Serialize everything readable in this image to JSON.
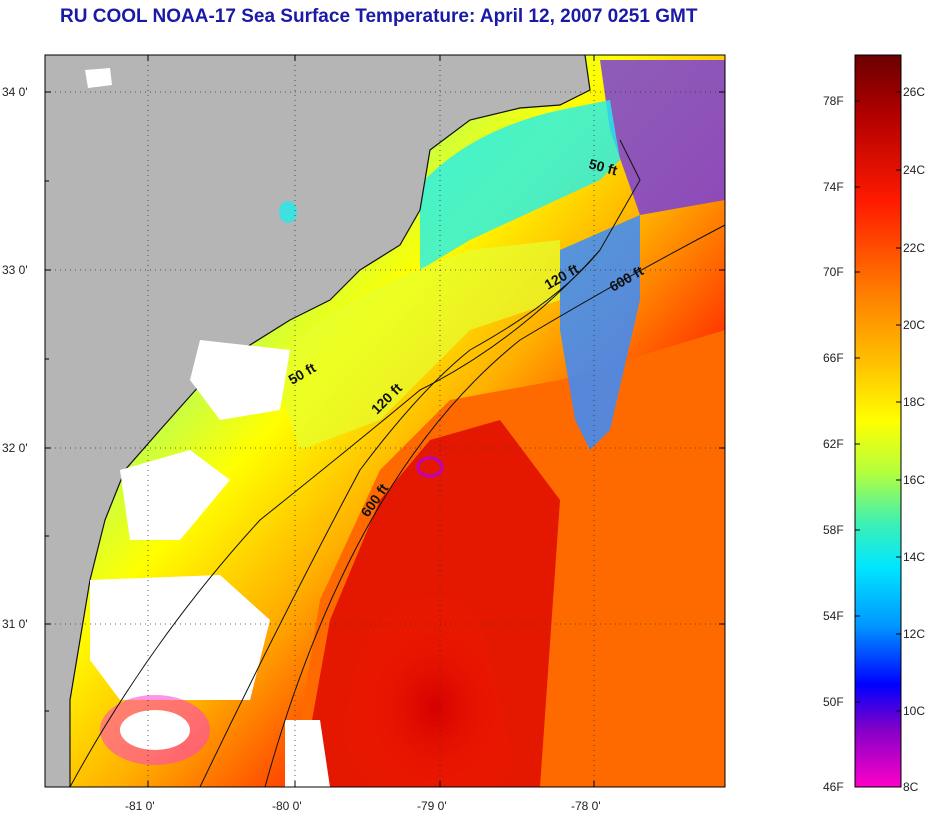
{
  "title": "RU COOL  NOAA-17  Sea Surface Temperature:  April 12, 2007 0251 GMT",
  "map": {
    "lat_ticks": [
      "34 0'",
      "33 0'",
      "32 0'",
      "31 0'"
    ],
    "lon_ticks": [
      "-81 0'",
      "-80 0'",
      "-79 0'",
      "-78 0'"
    ],
    "contour_labels": {
      "c50_north": "50 ft",
      "c50_south": "50 ft",
      "c120_north": "120 ft",
      "c120_south": "120 ft",
      "c600_north": "600 ft",
      "c600_south": "600 ft"
    },
    "colors": {
      "land": "#b5b5b5",
      "cloud": "#ffffff",
      "coast_line": "#111111"
    }
  },
  "colorbar": {
    "fahrenheit_labels": [
      "78F",
      "74F",
      "70F",
      "66F",
      "62F",
      "58F",
      "54F",
      "50F",
      "46F"
    ],
    "celsius_labels": [
      "26C",
      "24C",
      "22C",
      "20C",
      "18C",
      "16C",
      "14C",
      "12C",
      "10C",
      "8C"
    ],
    "colors": [
      "#6b0000",
      "#c80000",
      "#ff2a00",
      "#ff7a00",
      "#ffd000",
      "#ffff00",
      "#b4ff3c",
      "#3cf0b4",
      "#00e6ff",
      "#0064ff",
      "#0000ff",
      "#8000c8",
      "#ff00c8"
    ]
  }
}
